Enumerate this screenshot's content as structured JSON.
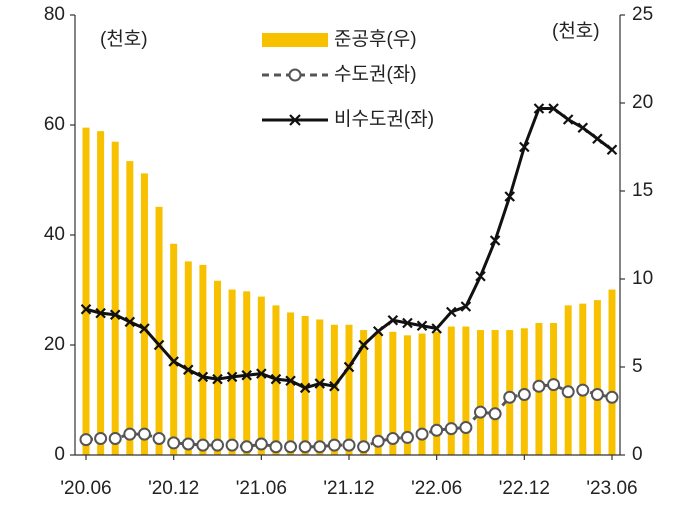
{
  "chart_data": {
    "type": "combo",
    "legend": "top",
    "annotations": [
      "(천호)",
      "(천호)"
    ],
    "categories": [
      "'20.06",
      null,
      null,
      null,
      null,
      null,
      "'20.12",
      null,
      null,
      null,
      null,
      null,
      "'21.06",
      null,
      null,
      null,
      null,
      null,
      "'21.12",
      null,
      null,
      null,
      null,
      null,
      "'22.06",
      null,
      null,
      null,
      null,
      null,
      "'22.12",
      null,
      null,
      null,
      null,
      null,
      "'23.06"
    ],
    "ylim": [
      0,
      80
    ],
    "yticks": [
      0,
      20,
      40,
      60,
      80
    ],
    "y2lim": [
      0,
      25
    ],
    "y2ticks": [
      0,
      5,
      10,
      15,
      20,
      25
    ],
    "series": [
      {
        "name": "준공후(우)",
        "type": "bar",
        "axis": "y2",
        "color": "#f7c100",
        "values": [
          18.6,
          18.4,
          17.8,
          16.7,
          16.0,
          14.1,
          12.0,
          11.0,
          10.8,
          9.9,
          9.4,
          9.3,
          9.0,
          8.5,
          8.1,
          7.9,
          7.7,
          7.4,
          7.4,
          7.1,
          7.0,
          7.0,
          6.8,
          6.9,
          7.0,
          7.3,
          7.3,
          7.1,
          7.1,
          7.1,
          7.2,
          7.5,
          7.5,
          8.5,
          8.6,
          8.8,
          9.4
        ]
      },
      {
        "name": "수도권(좌)",
        "type": "line",
        "marker": "circle",
        "dashed": true,
        "color": "#555555",
        "values": [
          2.8,
          3.0,
          3.0,
          3.8,
          3.8,
          3.0,
          2.2,
          2.0,
          1.8,
          1.8,
          1.8,
          1.5,
          2.0,
          1.5,
          1.5,
          1.5,
          1.5,
          1.8,
          1.8,
          1.5,
          2.5,
          3.0,
          3.2,
          3.8,
          4.5,
          4.8,
          5.0,
          7.8,
          7.5,
          10.5,
          11.0,
          12.5,
          12.8,
          11.5,
          11.8,
          11.0,
          10.5
        ]
      },
      {
        "name": "비수도권(좌)",
        "type": "line",
        "marker": "x",
        "dashed": false,
        "color": "#111111",
        "values": [
          26.5,
          25.8,
          25.5,
          24.2,
          23.0,
          20.0,
          17.0,
          15.5,
          14.2,
          13.8,
          14.2,
          14.5,
          14.8,
          13.8,
          13.5,
          12.2,
          13.0,
          12.5,
          16.0,
          20.0,
          22.5,
          24.5,
          24.0,
          23.5,
          23.0,
          26.0,
          27.0,
          32.5,
          39.0,
          47.0,
          56.0,
          63.0,
          63.0,
          61.0,
          59.5,
          57.5,
          55.5
        ]
      }
    ]
  }
}
